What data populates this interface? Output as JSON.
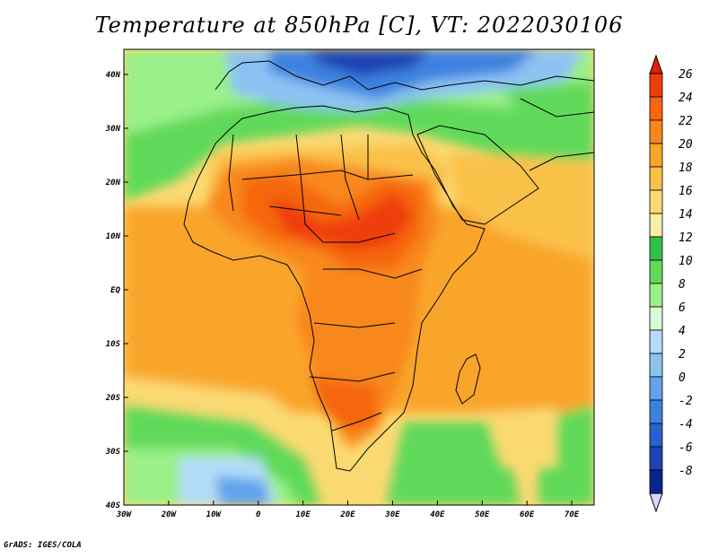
{
  "title": "Temperature at 850hPa [C], VT: 2022030106",
  "footer": "GrADS: IGES/COLA",
  "map": {
    "lon_labels": [
      "30W",
      "20W",
      "10W",
      "0",
      "10E",
      "20E",
      "30E",
      "40E",
      "50E",
      "60E",
      "70E"
    ],
    "lat_labels": [
      "40N",
      "30N",
      "20N",
      "10N",
      "EQ",
      "10S",
      "20S",
      "30S",
      "40S"
    ]
  },
  "colorbar": {
    "labels": [
      "26",
      "24",
      "22",
      "20",
      "18",
      "16",
      "14",
      "12",
      "10",
      "8",
      "6",
      "4",
      "2",
      "0",
      "-2",
      "-4",
      "-6",
      "-8"
    ],
    "colors": [
      "#f03c0a",
      "#f5660f",
      "#f8881a",
      "#f9a52a",
      "#fac148",
      "#fbd972",
      "#fbeea0",
      "#2ec24a",
      "#60d95a",
      "#9af089",
      "#d6fbd6",
      "#b3dcf8",
      "#8cc2f3",
      "#61a3ec",
      "#3e82e0",
      "#2862d0",
      "#1a45b4",
      "#0b258c"
    ],
    "top_color": "#e01f0a",
    "bottom_color": "#d8dbf7"
  }
}
